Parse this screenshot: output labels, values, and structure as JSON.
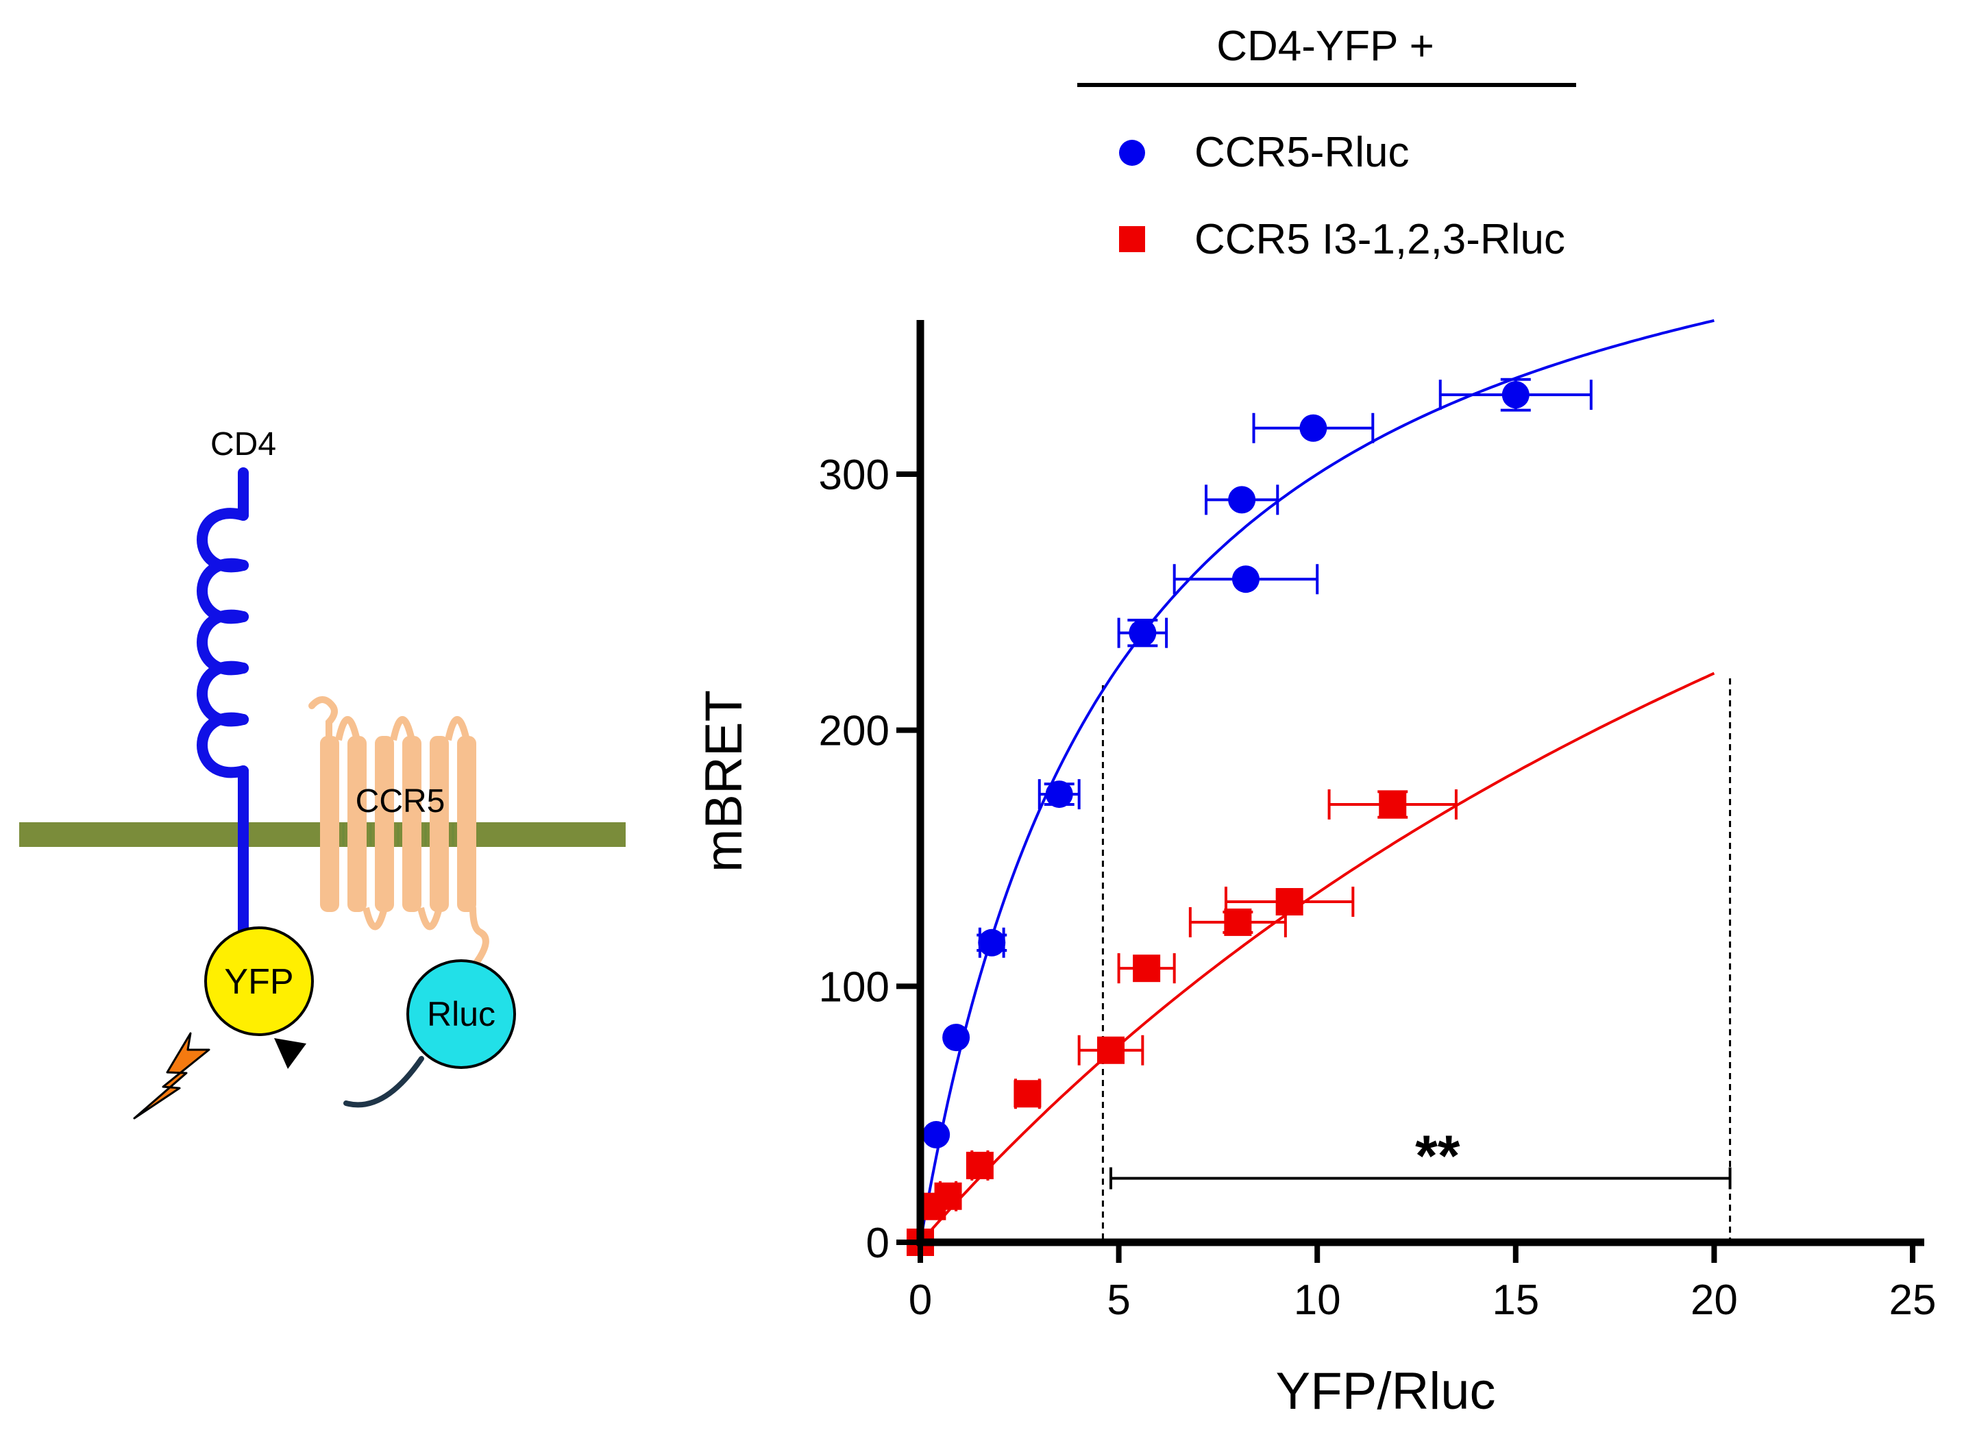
{
  "schematic": {
    "cd4_label": "CD4",
    "ccr5_label": "CCR5",
    "yfp_label": "YFP",
    "rluc_label": "Rluc",
    "colors": {
      "cd4": "#1010e6",
      "membrane": "#7a8c3a",
      "ccr5": "#f7c08f",
      "yfp": "#ffef00",
      "rluc": "#22e0e8",
      "lightning": "#f57a10",
      "linker": "#1f3548"
    }
  },
  "legend": {
    "header": "CD4-YFP +",
    "items": [
      {
        "label": "CCR5-Rluc",
        "marker": "circle",
        "color": "#0000ee"
      },
      {
        "label": "CCR5 I3-1,2,3-Rluc",
        "marker": "square",
        "color": "#ee0000"
      }
    ]
  },
  "chart_data": {
    "type": "scatter",
    "xlabel": "YFP/Rluc",
    "ylabel": "mBRET",
    "xlim": [
      0,
      25
    ],
    "ylim": [
      0,
      360
    ],
    "xticks": [
      0,
      5,
      10,
      15,
      20,
      25
    ],
    "yticks": [
      0,
      100,
      200,
      300
    ],
    "x_tick_labels": [
      "0",
      "5",
      "10",
      "15",
      "20",
      "25"
    ],
    "y_tick_labels": [
      "0",
      "100",
      "200",
      "300"
    ],
    "grid": false,
    "series": [
      {
        "name": "CCR5-Rluc",
        "color": "#0000ee",
        "marker": "circle",
        "points": [
          {
            "x": 0.0,
            "y": 0,
            "xerr": 0,
            "yerr": 0
          },
          {
            "x": 0.4,
            "y": 42,
            "xerr": 0,
            "yerr": 0
          },
          {
            "x": 0.9,
            "y": 80,
            "xerr": 0,
            "yerr": 0
          },
          {
            "x": 1.8,
            "y": 117,
            "xerr": 0.3,
            "yerr": 3
          },
          {
            "x": 3.5,
            "y": 175,
            "xerr": 0.5,
            "yerr": 4
          },
          {
            "x": 5.6,
            "y": 238,
            "xerr": 0.6,
            "yerr": 5
          },
          {
            "x": 8.2,
            "y": 259,
            "xerr": 1.8,
            "yerr": 0
          },
          {
            "x": 8.1,
            "y": 290,
            "xerr": 0.9,
            "yerr": 0
          },
          {
            "x": 9.9,
            "y": 318,
            "xerr": 1.5,
            "yerr": 0
          },
          {
            "x": 15.0,
            "y": 331,
            "xerr": 1.9,
            "yerr": 6
          }
        ],
        "fit": {
          "model": "one-site saturation",
          "bmax": 450,
          "kd": 5.0,
          "x_range": [
            0,
            20
          ]
        }
      },
      {
        "name": "CCR5 I3-1,2,3-Rluc",
        "color": "#ee0000",
        "marker": "square",
        "points": [
          {
            "x": 0.0,
            "y": 0,
            "xerr": 0,
            "yerr": 0
          },
          {
            "x": 0.3,
            "y": 14,
            "xerr": 0,
            "yerr": 0
          },
          {
            "x": 0.7,
            "y": 18,
            "xerr": 0.2,
            "yerr": 0
          },
          {
            "x": 1.5,
            "y": 30,
            "xerr": 0.2,
            "yerr": 0
          },
          {
            "x": 2.7,
            "y": 58,
            "xerr": 0.3,
            "yerr": 0
          },
          {
            "x": 4.8,
            "y": 75,
            "xerr": 0.8,
            "yerr": 0
          },
          {
            "x": 5.7,
            "y": 107,
            "xerr": 0.7,
            "yerr": 0
          },
          {
            "x": 8.0,
            "y": 125,
            "xerr": 1.2,
            "yerr": 4
          },
          {
            "x": 9.3,
            "y": 133,
            "xerr": 1.6,
            "yerr": 0
          },
          {
            "x": 11.9,
            "y": 171,
            "xerr": 1.6,
            "yerr": 5
          }
        ],
        "fit": {
          "model": "one-site saturation",
          "bmax": 600,
          "kd": 34,
          "x_range": [
            0,
            20
          ]
        }
      }
    ],
    "annotations": {
      "significance": "**",
      "bracket_x": [
        4.8,
        20.4
      ],
      "bracket_y": 25,
      "dashed_lines_x": [
        4.6,
        20.4
      ]
    }
  }
}
